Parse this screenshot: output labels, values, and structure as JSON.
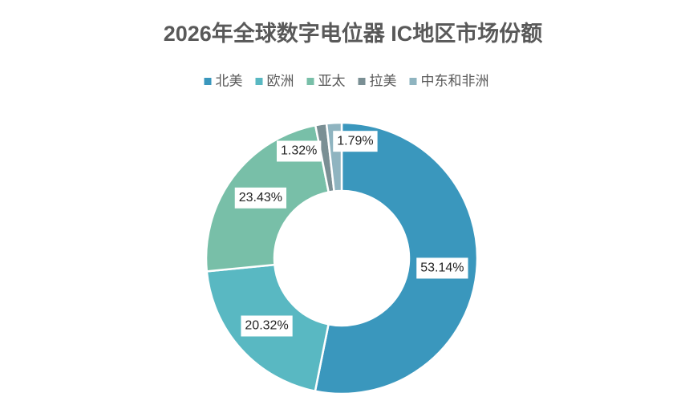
{
  "chart_data": {
    "type": "donut",
    "title": "2026年全球数字电位器 IC地区市场份额",
    "categories": [
      "北美",
      "欧洲",
      "亚太",
      "拉美",
      "中东和非洲"
    ],
    "values": [
      53.14,
      20.32,
      23.43,
      1.32,
      1.79
    ],
    "value_labels": [
      "53.14%",
      "20.32%",
      "23.43%",
      "1.32%",
      "1.79%"
    ],
    "colors": [
      "#3a97bd",
      "#59b8c2",
      "#78bfa8",
      "#7a8f94",
      "#8fb4c0"
    ],
    "legend": "top"
  }
}
